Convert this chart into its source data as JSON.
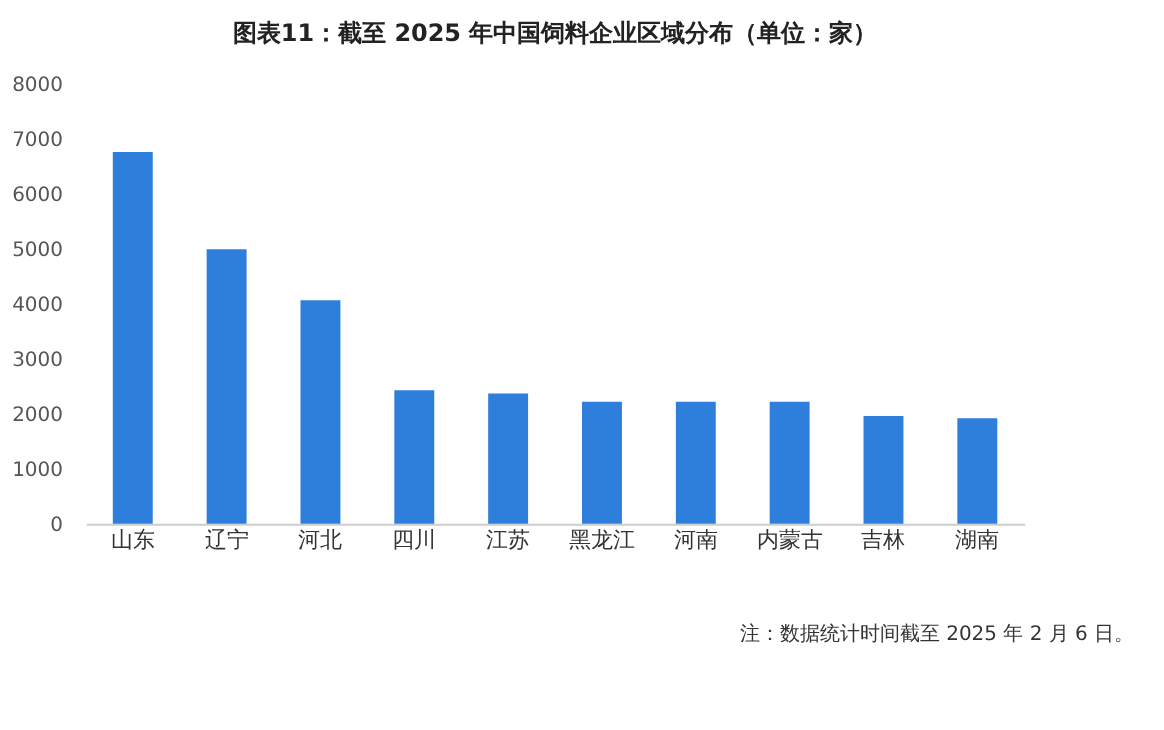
{
  "chart_data": {
    "type": "bar",
    "title": "图表11：截至 2025 年中国饲料企业区域分布（单位：家）",
    "categories": [
      "山东",
      "辽宁",
      "河北",
      "四川",
      "江苏",
      "黑龙江",
      "河南",
      "内蒙古",
      "吉林",
      "湖南"
    ],
    "values": [
      6770,
      5000,
      4070,
      2430,
      2370,
      2220,
      2220,
      2220,
      1960,
      1920
    ],
    "color": "#2e7fdc",
    "ylim": [
      0,
      8000
    ],
    "yticks": [
      0,
      1000,
      2000,
      3000,
      4000,
      5000,
      6000,
      7000,
      8000
    ],
    "grid": false,
    "annotations": [
      "注：数据统计时间截至 2025 年 2 月 6 日。"
    ]
  }
}
